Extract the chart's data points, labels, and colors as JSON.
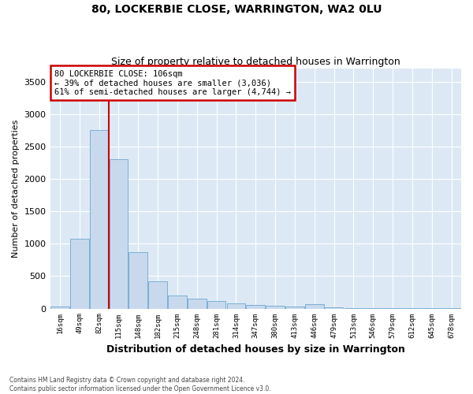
{
  "title": "80, LOCKERBIE CLOSE, WARRINGTON, WA2 0LU",
  "subtitle": "Size of property relative to detached houses in Warrington",
  "xlabel": "Distribution of detached houses by size in Warrington",
  "ylabel": "Number of detached properties",
  "bar_color": "#c8d9ee",
  "bar_edge_color": "#7bafd4",
  "background_color": "#dce9f5",
  "categories": [
    "16sqm",
    "49sqm",
    "82sqm",
    "115sqm",
    "148sqm",
    "182sqm",
    "215sqm",
    "248sqm",
    "281sqm",
    "314sqm",
    "347sqm",
    "380sqm",
    "413sqm",
    "446sqm",
    "479sqm",
    "513sqm",
    "546sqm",
    "579sqm",
    "612sqm",
    "645sqm",
    "678sqm"
  ],
  "values": [
    30,
    1080,
    2750,
    2300,
    870,
    420,
    200,
    155,
    120,
    80,
    55,
    40,
    30,
    70,
    20,
    12,
    8,
    5,
    3,
    2,
    1
  ],
  "ylim": [
    0,
    3700
  ],
  "yticks": [
    0,
    500,
    1000,
    1500,
    2000,
    2500,
    3000,
    3500
  ],
  "property_label": "80 LOCKERBIE CLOSE: 106sqm",
  "annotation_line1": "← 39% of detached houses are smaller (3,036)",
  "annotation_line2": "61% of semi-detached houses are larger (4,744) →",
  "annotation_box_color": "#ffffff",
  "annotation_border_color": "#cc0000",
  "vline_color": "#cc0000",
  "vline_x_index": 2.5,
  "footer_line1": "Contains HM Land Registry data © Crown copyright and database right 2024.",
  "footer_line2": "Contains public sector information licensed under the Open Government Licence v3.0."
}
